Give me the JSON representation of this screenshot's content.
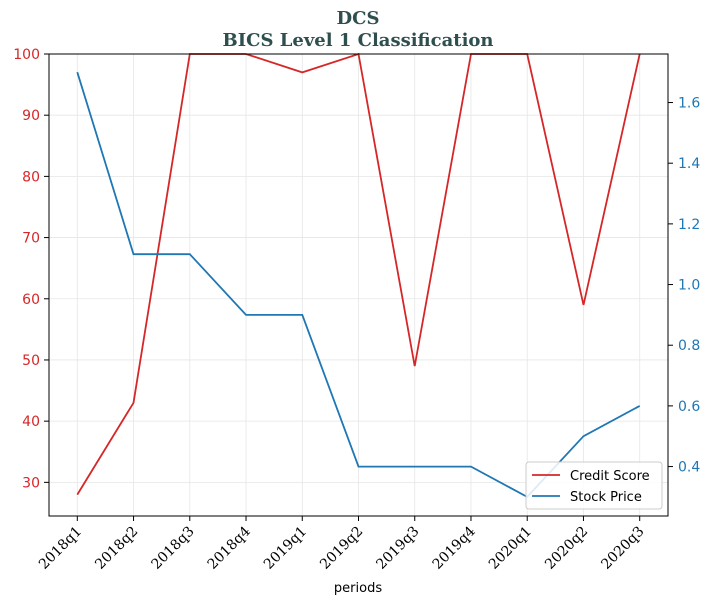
{
  "chart_data": {
    "type": "line",
    "title": "DCS",
    "subtitle": "BICS Level 1 Classification",
    "xlabel": "periods",
    "categories": [
      "2018q1",
      "2018q2",
      "2018q3",
      "2018q4",
      "2019q1",
      "2019q2",
      "2019q3",
      "2019q4",
      "2020q1",
      "2020q2",
      "2020q3"
    ],
    "series": [
      {
        "name": "Credit Score",
        "axis": "left",
        "color": "#d62728",
        "values": [
          28,
          43,
          100,
          100,
          97,
          100,
          49,
          100,
          100,
          59,
          100
        ]
      },
      {
        "name": "Stock Price",
        "axis": "right",
        "color": "#1f77b4",
        "values": [
          1.7,
          1.1,
          1.1,
          0.9,
          0.9,
          0.4,
          0.4,
          0.4,
          0.3,
          0.5,
          0.6
        ]
      }
    ],
    "y_left": {
      "ylim": [
        24.5,
        100
      ],
      "ticks": [
        30,
        40,
        50,
        60,
        70,
        80,
        90,
        100
      ],
      "color": "#d62728"
    },
    "y_right": {
      "ylim": [
        0.237,
        1.76
      ],
      "ticks": [
        "0.4",
        "0.6",
        "0.8",
        "1.0",
        "1.2",
        "1.4",
        "1.6"
      ],
      "color": "#1f77b4"
    },
    "grid": true,
    "legend": {
      "placement": "bottom-right",
      "entries": [
        "Credit Score",
        "Stock Price"
      ]
    }
  }
}
